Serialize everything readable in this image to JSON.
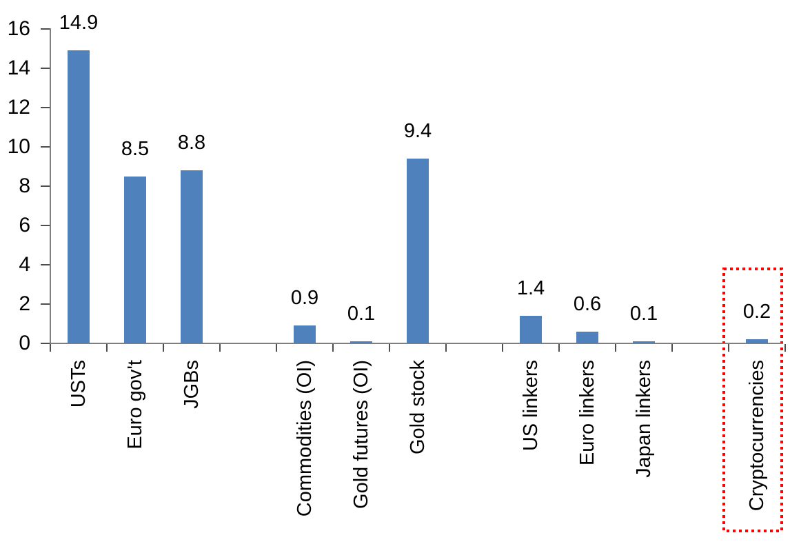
{
  "chart_data": {
    "type": "bar",
    "title": "",
    "categories": [
      "USTs",
      "Euro gov't",
      "JGBs",
      "Commodities (OI)",
      "Gold futures (OI)",
      "Gold stock",
      "US linkers",
      "Euro linkers",
      "Japan linkers",
      "Cryptocurrencies"
    ],
    "values": [
      14.9,
      8.5,
      8.8,
      0.9,
      0.1,
      9.4,
      1.4,
      0.6,
      0.1,
      0.2
    ],
    "data_labels": [
      "14.9",
      "8.5",
      "8.8",
      "0.9",
      "0.1",
      "9.4",
      "1.4",
      "0.6",
      "0.1",
      "0.2"
    ],
    "yticks": [
      "0",
      "2",
      "4",
      "6",
      "8",
      "10",
      "12",
      "14",
      "16"
    ],
    "ylim": [
      0,
      16
    ],
    "xlabel": "",
    "ylabel": "",
    "grid": false,
    "legend": null,
    "gap_slots": [
      3,
      7,
      11
    ],
    "total_slots": 13,
    "bar_color": "#4F81BD",
    "axis_color": "#7f7f7f",
    "highlight": {
      "category": "Cryptocurrencies",
      "value_label": "0.2",
      "box_style": "dotted rectangle",
      "box_color": "#FF0000"
    }
  }
}
